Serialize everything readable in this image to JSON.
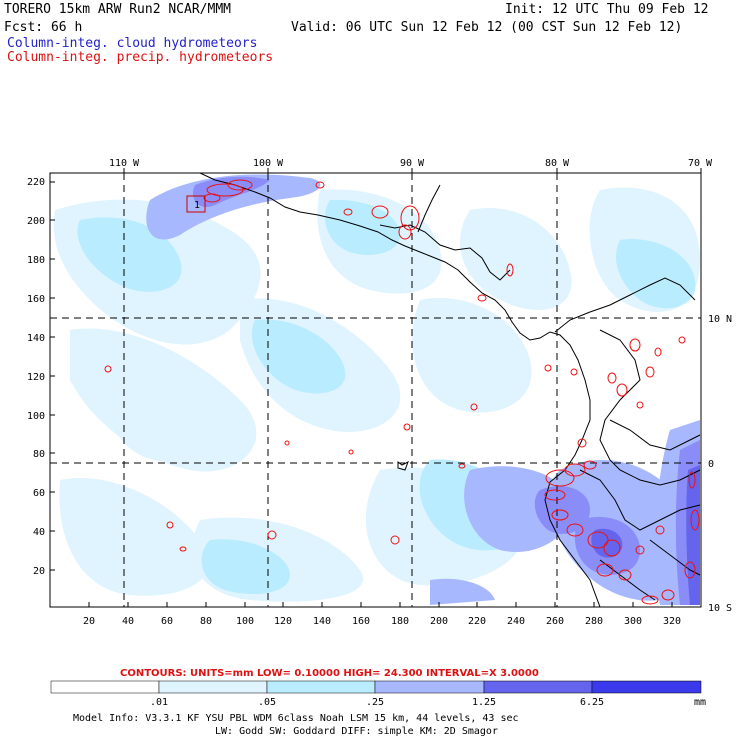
{
  "header": {
    "model_line": "TORERO  15km ARW   Run2    NCAR/MMM",
    "init_line": "Init: 12 UTC Thu 09 Feb 12",
    "fcst_line": "Fcst:   66 h",
    "valid_line": "Valid: 06 UTC Sun 12 Feb 12 (00 CST Sun 12 Feb 12)",
    "field1": "Column-integ. cloud hydrometeors",
    "field2": "Column-integ. precip. hydrometeors"
  },
  "map": {
    "top_lon_labels": [
      "110 W",
      "100 W",
      "90 W",
      "80 W",
      "70 W"
    ],
    "right_lat_labels": [
      "10 N",
      "0",
      "10 S"
    ],
    "y_ticks": [
      "220",
      "200",
      "180",
      "160",
      "140",
      "120",
      "100",
      "80",
      "60",
      "40",
      "20"
    ],
    "x_ticks": [
      "20",
      "40",
      "60",
      "80",
      "100",
      "120",
      "140",
      "160",
      "180",
      "200",
      "220",
      "240",
      "260",
      "280",
      "300",
      "320"
    ],
    "box_label": "1",
    "colors": {
      "land_line": "#000000",
      "grid_line": "#000000",
      "contour": "#ee1111"
    }
  },
  "contour_info": {
    "label": "CONTOURS:  UNITS=mm  LOW= 0.10000      HIGH=  24.300      INTERVAL=X  3.0000"
  },
  "colorbar": {
    "ticks": [
      ".01",
      ".05",
      ".25",
      "1.25",
      "6.25"
    ],
    "units": "mm",
    "colors": [
      "#ffffff",
      "#dff4ff",
      "#b9ecff",
      "#a8b8ff",
      "#8a8cf8",
      "#6464ec",
      "#3a3aec"
    ]
  },
  "footer": {
    "line1": "Model Info: V3.3.1   KF     YSU PBL  WDM 6class  Noah LSM  15 km,   44 levels,   43 sec",
    "line2": "LW: Godd SW: Goddard DIFF: simple KM: 2D Smagor"
  }
}
